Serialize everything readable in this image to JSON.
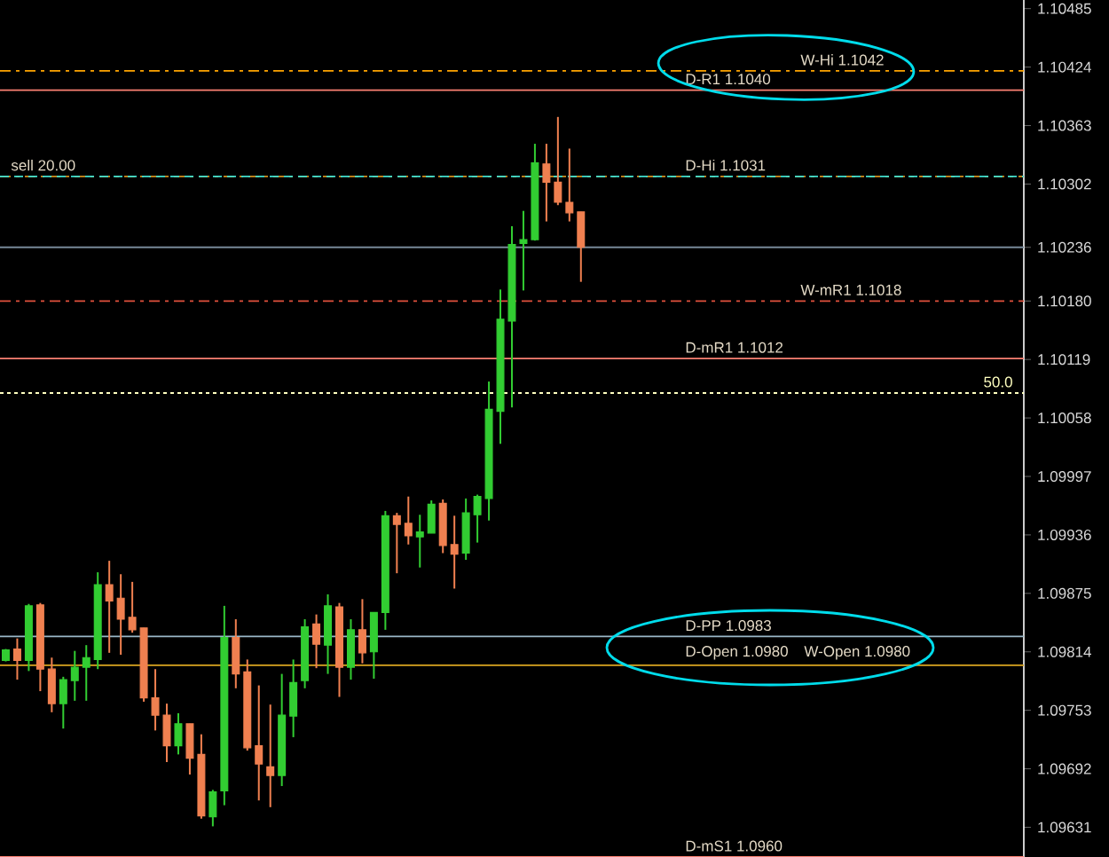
{
  "chart_data": {
    "type": "candlestick",
    "categories": [
      null,
      null,
      null,
      null,
      null,
      null,
      null,
      null,
      null,
      null,
      null,
      null,
      null,
      null,
      null,
      null,
      null,
      null,
      null,
      null,
      null,
      null,
      null,
      null,
      null,
      null,
      null,
      null,
      null,
      null,
      null,
      null,
      null,
      null,
      null,
      null,
      null,
      null,
      null,
      null,
      null,
      null,
      null,
      null,
      null,
      null,
      null,
      null,
      null,
      null,
      null,
      null,
      null,
      null,
      null,
      null,
      null,
      null,
      null,
      null,
      null,
      null,
      null,
      null,
      null,
      null,
      null,
      null,
      null,
      null,
      null,
      null,
      null,
      null,
      null,
      null,
      null,
      null,
      null,
      null,
      null,
      null,
      null,
      null,
      null,
      null,
      null,
      null,
      null
    ],
    "ohlc": [
      [
        1.09805,
        1.09817,
        1.09804,
        1.09816
      ],
      [
        1.09817,
        1.09828,
        1.09785,
        1.09805
      ],
      [
        1.09805,
        1.09864,
        1.09794,
        1.09862
      ],
      [
        1.09863,
        1.09865,
        1.09773,
        1.09796
      ],
      [
        1.09796,
        1.09808,
        1.09751,
        1.0976
      ],
      [
        1.0976,
        1.09788,
        1.09734,
        1.09785
      ],
      [
        1.09784,
        1.09815,
        1.09763,
        1.09798
      ],
      [
        1.09798,
        1.09821,
        1.09763,
        1.09808
      ],
      [
        1.09806,
        1.09897,
        1.09796,
        1.09884
      ],
      [
        1.09884,
        1.09909,
        1.09813,
        1.09867
      ],
      [
        1.0987,
        1.09895,
        1.09811,
        1.09848
      ],
      [
        1.0985,
        1.09887,
        1.09834,
        1.09837
      ],
      [
        1.09839,
        1.09839,
        1.09762,
        1.09766
      ],
      [
        1.09766,
        1.09796,
        1.09732,
        1.09748
      ],
      [
        1.09748,
        1.0976,
        1.09699,
        1.09716
      ],
      [
        1.09716,
        1.0975,
        1.09707,
        1.09739
      ],
      [
        1.09739,
        1.09739,
        1.09686,
        1.09703
      ],
      [
        1.09707,
        1.09728,
        1.0964,
        1.09643
      ],
      [
        1.09642,
        1.0967,
        1.09632,
        1.09668
      ],
      [
        1.09669,
        1.09862,
        1.09654,
        1.09829
      ],
      [
        1.09829,
        1.09848,
        1.09776,
        1.09791
      ],
      [
        1.09793,
        1.09806,
        1.09711,
        1.09714
      ],
      [
        1.09716,
        1.09779,
        1.09659,
        1.09697
      ],
      [
        1.09694,
        1.09759,
        1.09652,
        1.09685
      ],
      [
        1.09685,
        1.09791,
        1.09674,
        1.09748
      ],
      [
        1.09747,
        1.09806,
        1.09725,
        1.09782
      ],
      [
        1.09784,
        1.09848,
        1.09776,
        1.0984
      ],
      [
        1.09843,
        1.09853,
        1.09797,
        1.09822
      ],
      [
        1.09821,
        1.09874,
        1.09791,
        1.09862
      ],
      [
        1.09861,
        1.09865,
        1.09767,
        1.09798
      ],
      [
        1.09798,
        1.09848,
        1.09785,
        1.09837
      ],
      [
        1.09837,
        1.09869,
        1.09802,
        1.09813
      ],
      [
        1.09814,
        1.09855,
        1.09786,
        1.09855
      ],
      [
        1.09855,
        1.09961,
        1.09837,
        1.09956
      ],
      [
        1.09956,
        1.09959,
        1.09896,
        1.09947
      ],
      [
        1.09948,
        1.09976,
        1.09926,
        1.09935
      ],
      [
        1.09934,
        1.09957,
        1.09902,
        1.09939
      ],
      [
        1.09938,
        1.09972,
        1.09938,
        1.09968
      ],
      [
        1.09969,
        1.09973,
        1.09917,
        1.09925
      ],
      [
        1.09926,
        1.09956,
        1.0988,
        1.09916
      ],
      [
        1.09917,
        1.09974,
        1.0991,
        1.09959
      ],
      [
        1.09957,
        1.09978,
        1.09928,
        1.09976
      ],
      [
        1.09974,
        1.10096,
        1.09951,
        1.10067
      ],
      [
        1.10065,
        1.10192,
        1.10031,
        1.10161
      ],
      [
        1.10159,
        1.10258,
        1.10069,
        1.10239
      ],
      [
        1.1024,
        1.10274,
        1.10191,
        1.10244
      ],
      [
        1.10244,
        1.10344,
        1.10243,
        1.10324
      ],
      [
        1.10323,
        1.10344,
        1.10263,
        1.10304
      ],
      [
        1.10304,
        1.10372,
        1.1028,
        1.10283
      ],
      [
        1.10283,
        1.10339,
        1.10263,
        1.10272
      ],
      [
        1.10273,
        1.10273,
        1.102,
        1.10236
      ],
      null,
      null,
      null,
      null,
      null,
      null,
      null,
      null,
      null,
      null,
      null,
      null,
      null,
      null,
      null,
      null,
      null,
      null,
      null,
      null,
      null,
      null,
      null,
      null,
      null,
      null,
      null,
      null,
      null,
      null,
      null,
      null,
      null,
      null,
      null,
      null,
      null,
      null
    ],
    "colors": [
      "#32cd32",
      "#f08050",
      "#32cd32",
      "#f08050",
      "#f08050",
      "#32cd32",
      "#32cd32",
      "#32cd32",
      "#32cd32",
      "#f08050",
      "#f08050",
      "#f08050",
      "#f08050",
      "#f08050",
      "#f08050",
      "#32cd32",
      "#f08050",
      "#f08050",
      "#32cd32",
      "#32cd32",
      "#f08050",
      "#f08050",
      "#f08050",
      "#f08050",
      "#32cd32",
      "#32cd32",
      "#32cd32",
      "#f08050",
      "#32cd32",
      "#f08050",
      "#32cd32",
      "#f08050",
      "#32cd32",
      "#32cd32",
      "#f08050",
      "#f08050",
      "#32cd32",
      "#32cd32",
      "#f08050",
      "#f08050",
      "#32cd32",
      "#32cd32",
      "#32cd32",
      "#32cd32",
      "#32cd32",
      "#32cd32",
      "#32cd32",
      "#f08050",
      "#f08050",
      "#f08050",
      "#f08050",
      null,
      null,
      null,
      null,
      null,
      null,
      null,
      null,
      null,
      null,
      null,
      null,
      null,
      null,
      null,
      null,
      null,
      null,
      null,
      null,
      null,
      null,
      null,
      null,
      null,
      null,
      null,
      null,
      null,
      null,
      null,
      null,
      null,
      null,
      null,
      null,
      null,
      null
    ],
    "ylim": [
      1.096,
      1.10494
    ],
    "yticks": [
      1.10485,
      1.10424,
      1.10363,
      1.10302,
      1.10236,
      {
        "value": 1.1018,
        "label": "1.10180"
      },
      1.10119,
      1.10058,
      1.09997,
      1.09936,
      1.09875,
      1.09814,
      1.09753,
      1.09692,
      1.09631
    ],
    "tick_labels": "y",
    "ref_lines": [
      {
        "axis": "y",
        "value": 1.1042,
        "label": "W-Hi 1.1042",
        "color": "#ffa500",
        "line_style": "dashdot"
      },
      {
        "axis": "y",
        "value": 1.104,
        "label": "D-R1 1.1040",
        "color": "#fa8072",
        "line_style": "solid"
      },
      {
        "axis": "y",
        "value": 1.1031,
        "label": "D-Hi 1.1031",
        "color": "#d2901e",
        "line_style": "dashdot"
      },
      {
        "axis": "y",
        "value": 1.1031,
        "label": "sell 20.00",
        "color": "#40e0d0",
        "line_style": "dashed"
      },
      {
        "axis": "y",
        "value": 1.10236,
        "color": "#778899",
        "line_style": "solid"
      },
      {
        "axis": "y",
        "value": 1.1018,
        "label": "W-mR1 1.1018",
        "color": "#e0503c",
        "line_style": "dashdot"
      },
      {
        "axis": "y",
        "value": 1.1012,
        "label": "D-mR1 1.1012",
        "color": "#fa8072",
        "line_style": "solid"
      },
      {
        "axis": "y",
        "value": 1.10084,
        "color": "#ffffc0",
        "line_style": "dotted"
      },
      {
        "axis": "y",
        "value": 1.0983,
        "label": "D-PP 1.0983",
        "color": "#9ab8c8",
        "line_style": "solid"
      },
      {
        "axis": "y",
        "value": 1.098,
        "label": "D-Open 1.0980",
        "color": "#daa520",
        "line_style": "solid"
      },
      {
        "axis": "y",
        "value": 1.096,
        "label": "D-mS1 1.0960",
        "color": "#fa8072",
        "line_style": "solid"
      }
    ],
    "annotations": [
      {
        "text": "W-Open 1.0980",
        "y": 1.098
      },
      {
        "text": "50.0",
        "y": 1.10084
      }
    ]
  }
}
